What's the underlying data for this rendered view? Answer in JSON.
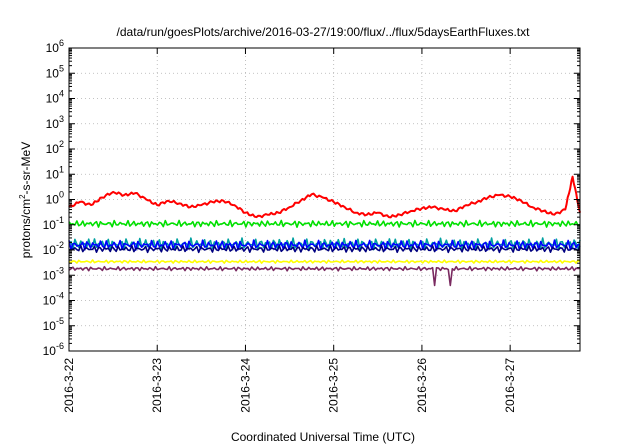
{
  "chart_data": {
    "type": "line",
    "title": "/data/run/goesPlots/archive/2016-03-27/19:00/flux/../flux/5daysEarthFluxes.txt",
    "xlabel": "Coordinated Universal Time (UTC)",
    "ylabel": "protons/cm2-s-sr-MeV",
    "ylabel_parts": {
      "base": "protons/cm",
      "sup": "2",
      "rest": "-s-sr-MeV"
    },
    "y_scale": "log",
    "ylim": [
      1e-06,
      1000000.0
    ],
    "y_ticks": [
      {
        "value": 1e-06,
        "base": "10",
        "exp": "-6"
      },
      {
        "value": 1e-05,
        "base": "10",
        "exp": "-5"
      },
      {
        "value": 0.0001,
        "base": "10",
        "exp": "-4"
      },
      {
        "value": 0.001,
        "base": "10",
        "exp": "-3"
      },
      {
        "value": 0.01,
        "base": "10",
        "exp": "-2"
      },
      {
        "value": 0.1,
        "base": "10",
        "exp": "-1"
      },
      {
        "value": 1,
        "base": "10",
        "exp": "0"
      },
      {
        "value": 10,
        "base": "10",
        "exp": "1"
      },
      {
        "value": 100,
        "base": "10",
        "exp": "2"
      },
      {
        "value": 1000,
        "base": "10",
        "exp": "3"
      },
      {
        "value": 10000,
        "base": "10",
        "exp": "4"
      },
      {
        "value": 100000,
        "base": "10",
        "exp": "5"
      },
      {
        "value": 1000000,
        "base": "10",
        "exp": "6"
      }
    ],
    "x_range": [
      "2016-03-22 00:00",
      "2016-03-27 19:00"
    ],
    "x_ticks": [
      "2016-3-22",
      "2016-3-23",
      "2016-3-24",
      "2016-3-25",
      "2016-3-26",
      "2016-3-27"
    ],
    "grid": true,
    "series": [
      {
        "color": "#ff0000",
        "x": [
          "2016-03-22 00:00",
          "2016-03-22 03:00",
          "2016-03-22 06:00",
          "2016-03-22 09:00",
          "2016-03-22 12:00",
          "2016-03-22 15:00",
          "2016-03-22 18:00",
          "2016-03-22 21:00",
          "2016-03-23 00:00",
          "2016-03-23 03:00",
          "2016-03-23 06:00",
          "2016-03-23 09:00",
          "2016-03-23 12:00",
          "2016-03-23 15:00",
          "2016-03-23 18:00",
          "2016-03-23 21:00",
          "2016-03-24 00:00",
          "2016-03-24 03:00",
          "2016-03-24 06:00",
          "2016-03-24 09:00",
          "2016-03-24 12:00",
          "2016-03-24 15:00",
          "2016-03-24 18:00",
          "2016-03-24 21:00",
          "2016-03-25 00:00",
          "2016-03-25 03:00",
          "2016-03-25 06:00",
          "2016-03-25 09:00",
          "2016-03-25 12:00",
          "2016-03-25 15:00",
          "2016-03-25 18:00",
          "2016-03-25 21:00",
          "2016-03-26 00:00",
          "2016-03-26 03:00",
          "2016-03-26 06:00",
          "2016-03-26 09:00",
          "2016-03-26 12:00",
          "2016-03-26 15:00",
          "2016-03-26 18:00",
          "2016-03-26 21:00",
          "2016-03-27 00:00",
          "2016-03-27 03:00",
          "2016-03-27 06:00",
          "2016-03-27 09:00",
          "2016-03-27 12:00",
          "2016-03-27 15:00",
          "2016-03-27 17:00",
          "2016-03-27 19:00"
        ],
        "values": [
          0.5,
          0.8,
          0.6,
          1.2,
          2.0,
          1.5,
          1.8,
          1.0,
          0.6,
          0.9,
          0.7,
          0.5,
          0.6,
          0.8,
          0.9,
          0.6,
          0.3,
          0.2,
          0.25,
          0.3,
          0.5,
          0.9,
          1.6,
          1.2,
          0.8,
          0.5,
          0.3,
          0.25,
          0.3,
          0.2,
          0.25,
          0.35,
          0.45,
          0.5,
          0.4,
          0.35,
          0.6,
          0.8,
          1.2,
          1.5,
          1.3,
          0.9,
          0.5,
          0.35,
          0.25,
          0.4,
          8.0,
          0.3
        ]
      },
      {
        "color": "#00e000",
        "values": [
          0.08,
          0.15
        ]
      },
      {
        "color": "#00a0a0",
        "values": [
          0.01,
          0.03
        ]
      },
      {
        "color": "#0000ff",
        "values": [
          0.01,
          0.025
        ]
      },
      {
        "color": "#000080",
        "values": [
          0.008,
          0.015
        ]
      },
      {
        "color": "#ffff00",
        "values": [
          0.003,
          0.004
        ]
      },
      {
        "color": "#7a2a60",
        "values": [
          0.0015,
          0.0022
        ]
      }
    ]
  }
}
